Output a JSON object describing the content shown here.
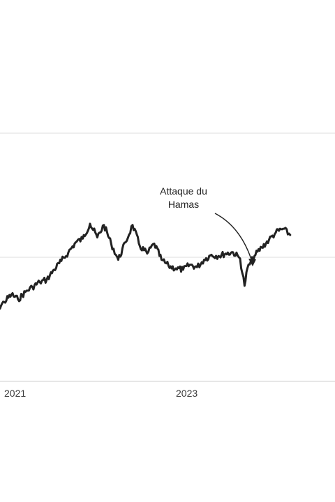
{
  "colors": {
    "line": "#222222",
    "grid": "#dcdcdc",
    "text": "#3a3a3a"
  },
  "chart_data": {
    "type": "line",
    "title": "",
    "xlabel": "",
    "ylabel": "",
    "grid": true,
    "x_ticks": [
      "2021",
      "2023"
    ],
    "series": [
      {
        "x": [
          "2020-11-01",
          "2020-12-01",
          "2021-01-01",
          "2021-02-01",
          "2021-03-01",
          "2021-04-01",
          "2021-05-01",
          "2021-06-01",
          "2021-07-01",
          "2021-08-01",
          "2021-09-01",
          "2021-10-01",
          "2021-11-01",
          "2021-12-01",
          "2022-01-01",
          "2022-02-01",
          "2022-03-01",
          "2022-04-01",
          "2022-05-01",
          "2022-06-01",
          "2022-07-01",
          "2022-08-01",
          "2022-09-01",
          "2022-10-01",
          "2022-11-01",
          "2022-12-01",
          "2023-01-01",
          "2023-02-01",
          "2023-03-01",
          "2023-04-01",
          "2023-05-01",
          "2023-06-01",
          "2023-07-01",
          "2023-08-01",
          "2023-09-01",
          "2023-10-01",
          "2023-10-20",
          "2023-11-01",
          "2023-12-01",
          "2024-01-01",
          "2024-02-01",
          "2024-03-01",
          "2024-04-01",
          "2024-05-01"
        ],
        "values": [
          51,
          58,
          64,
          70,
          66,
          72,
          76,
          80,
          82,
          90,
          97,
          104,
          112,
          115,
          127,
          116,
          126,
          111,
          98,
          112,
          126,
          109,
          103,
          111,
          98,
          93,
          91,
          90,
          94,
          92,
          98,
          102,
          101,
          103,
          104,
          99,
          77,
          91,
          101,
          108,
          114,
          120,
          123,
          118
        ]
      }
    ],
    "annotations": [
      {
        "lines": [
          "Attaque du",
          "Hamas"
        ],
        "x": "2023-10-07",
        "y": 102
      }
    ]
  }
}
